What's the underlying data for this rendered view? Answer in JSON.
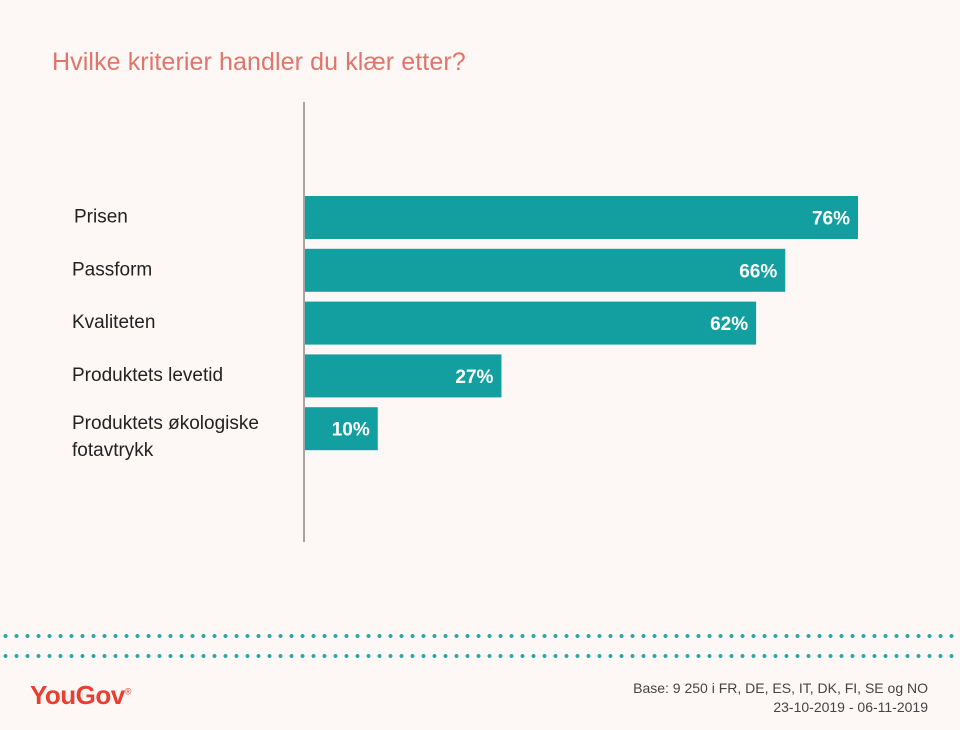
{
  "chart_data": {
    "type": "bar",
    "orientation": "horizontal",
    "title": "Hvilke kriterier handler du klær etter?",
    "categories": [
      "Prisen",
      "Passform",
      "Kvaliteten",
      "Produktets levetid",
      "Produktets økologiske fotavtrykk"
    ],
    "category_lines": [
      [
        "Prisen"
      ],
      [
        "Passform"
      ],
      [
        "Kvaliteten"
      ],
      [
        "Produktets levetid"
      ],
      [
        "Produktets økologiske",
        "fotavtrykk"
      ]
    ],
    "values": [
      76,
      66,
      62,
      27,
      10
    ],
    "value_labels": [
      "76%",
      "66%",
      "62%",
      "27%",
      "10%"
    ],
    "unit": "%",
    "xlim": [
      0,
      76
    ],
    "grid": false,
    "colors": {
      "bar": "#139fa0",
      "title": "#e0756a"
    }
  },
  "footer": {
    "logo_text": "YouGov",
    "logo_mark": "®",
    "base_text": "Base: 9 250 i FR, DE, ES, IT, DK, FI, SE og NO",
    "date_range": "23-10-2019 - 06-11-2019",
    "colors": {
      "logo": "#ea3e31",
      "dots": "#2aa7a6"
    }
  }
}
